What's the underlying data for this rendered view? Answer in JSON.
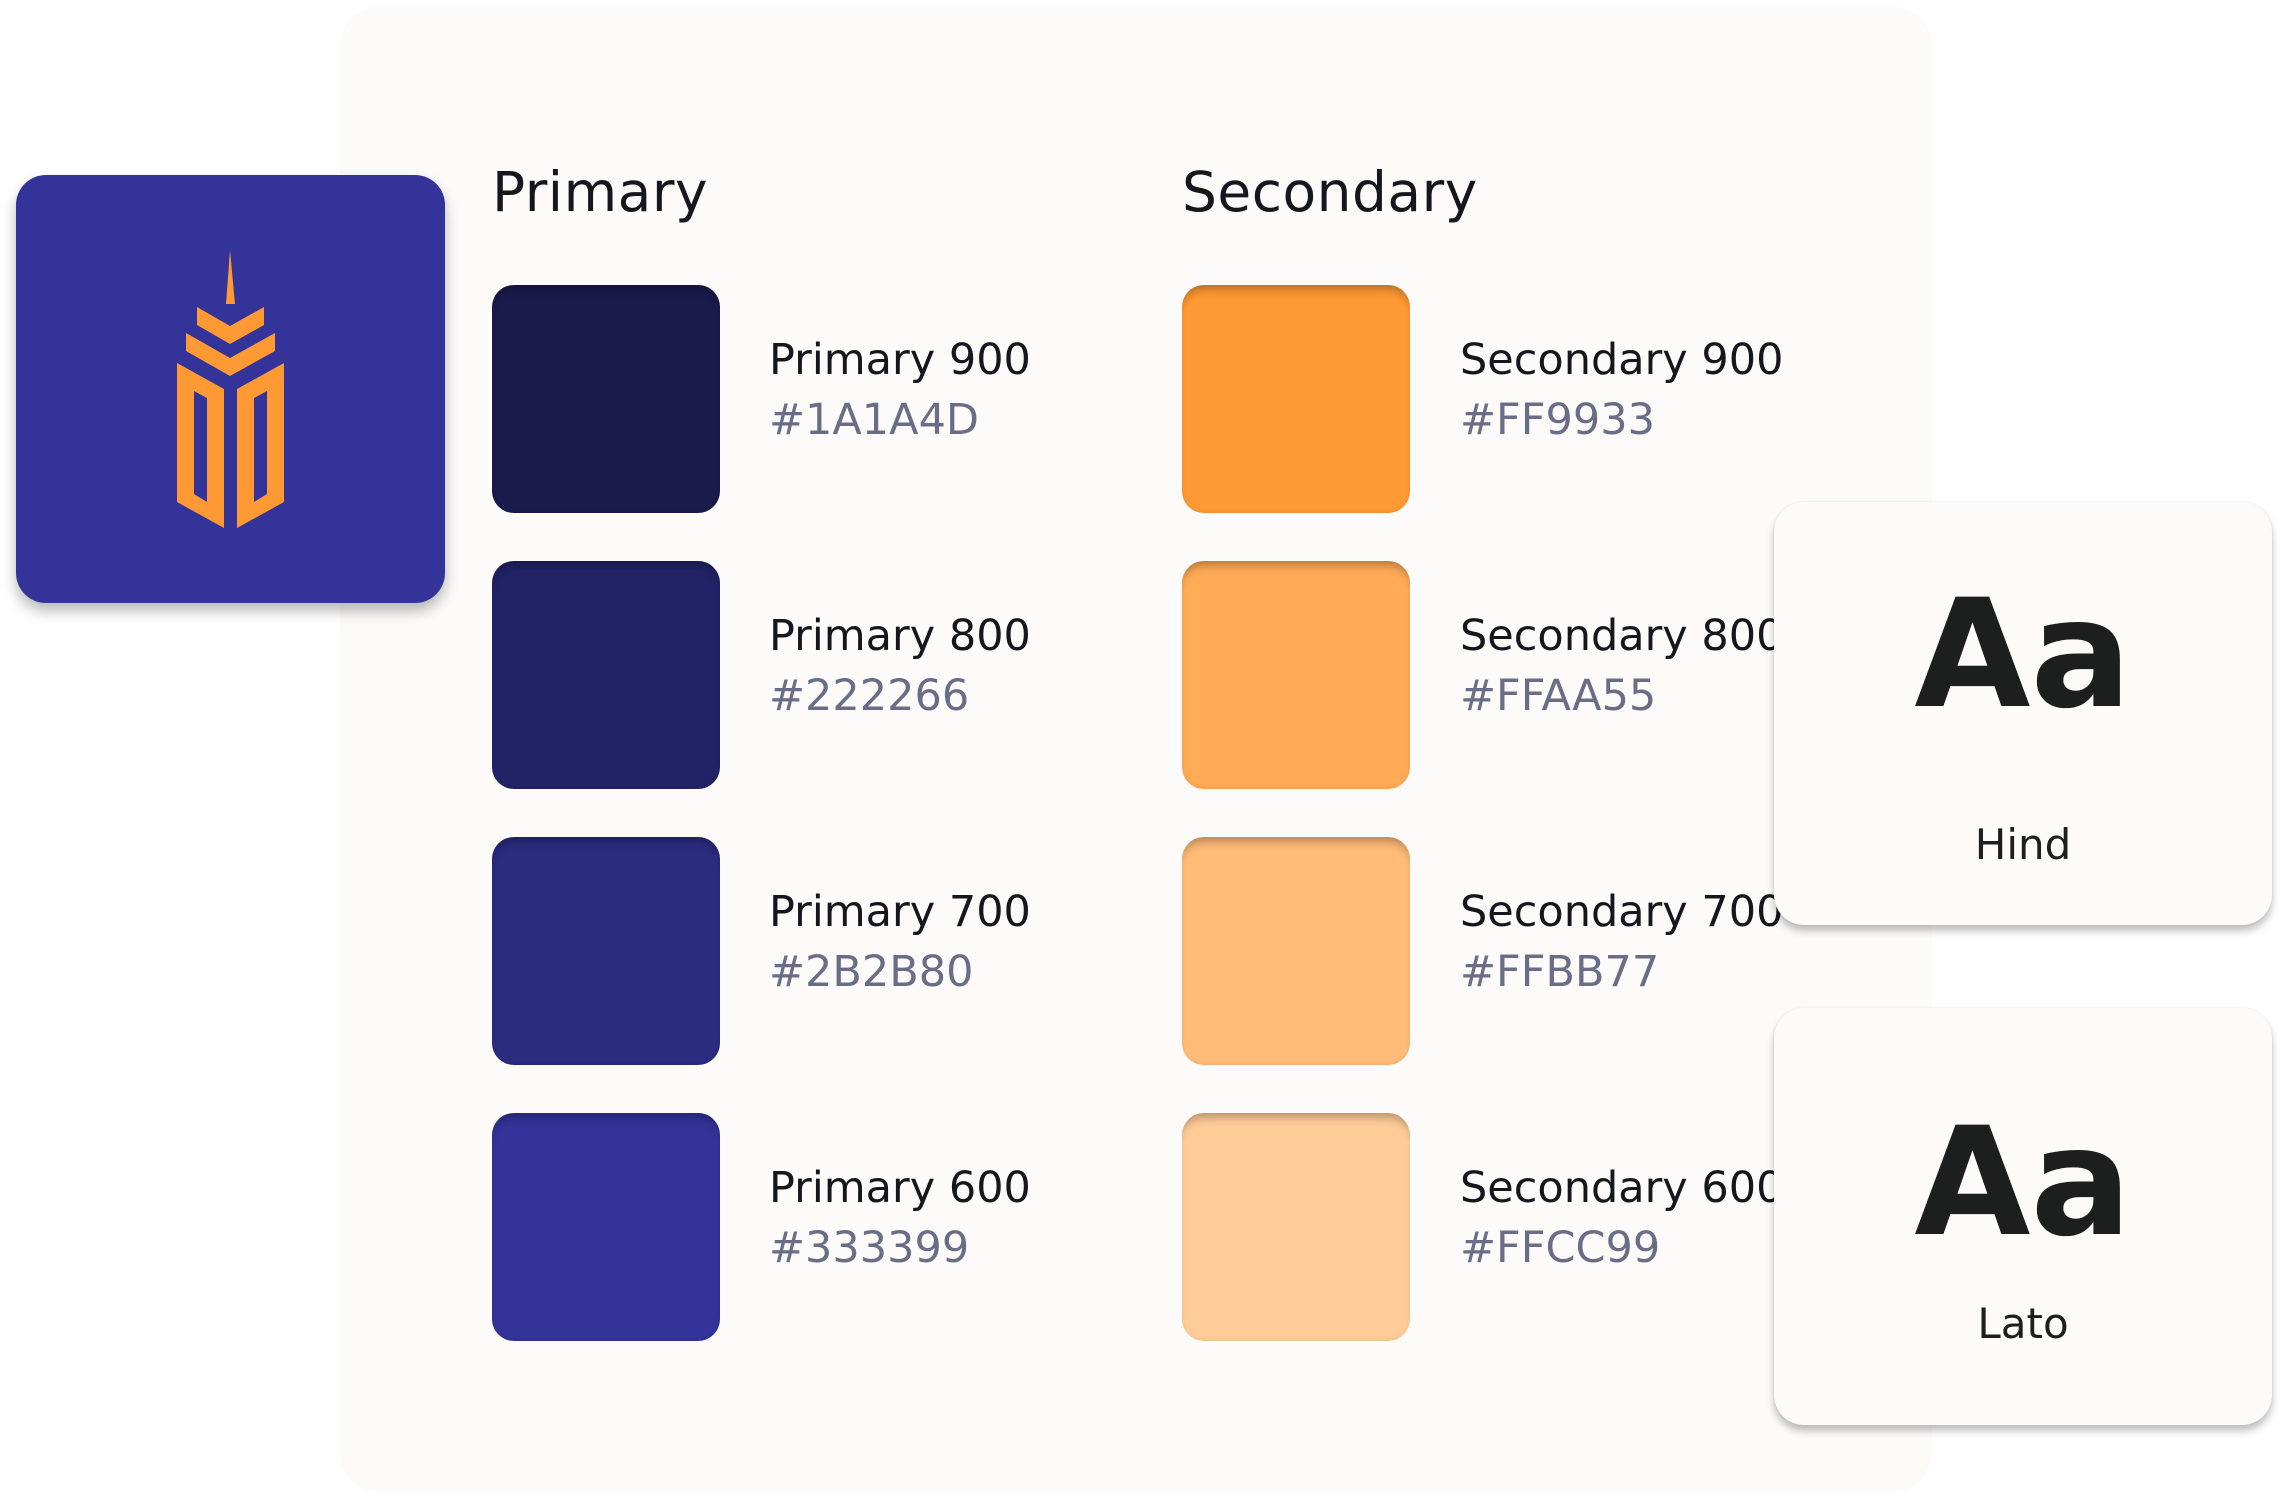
{
  "logo": {
    "icon": "tower-logo",
    "background": "#333399",
    "foreground": "#FF9933"
  },
  "primary": {
    "heading": "Primary",
    "swatches": [
      {
        "name": "Primary 900",
        "hex": "#1A1A4D"
      },
      {
        "name": "Primary 800",
        "hex": "#222266"
      },
      {
        "name": "Primary 700",
        "hex": "#2B2B80"
      },
      {
        "name": "Primary 600",
        "hex": "#333399"
      }
    ]
  },
  "secondary": {
    "heading": "Secondary",
    "swatches": [
      {
        "name": "Secondary 900",
        "hex": "#FF9933"
      },
      {
        "name": "Secondary 800",
        "hex": "#FFAA55"
      },
      {
        "name": "Secondary 700",
        "hex": "#FFBB77"
      },
      {
        "name": "Secondary 600",
        "hex": "#FFCC99"
      }
    ]
  },
  "fonts": [
    {
      "sample": "Aa",
      "name": "Hind"
    },
    {
      "sample": "Aa",
      "name": "Lato"
    }
  ]
}
